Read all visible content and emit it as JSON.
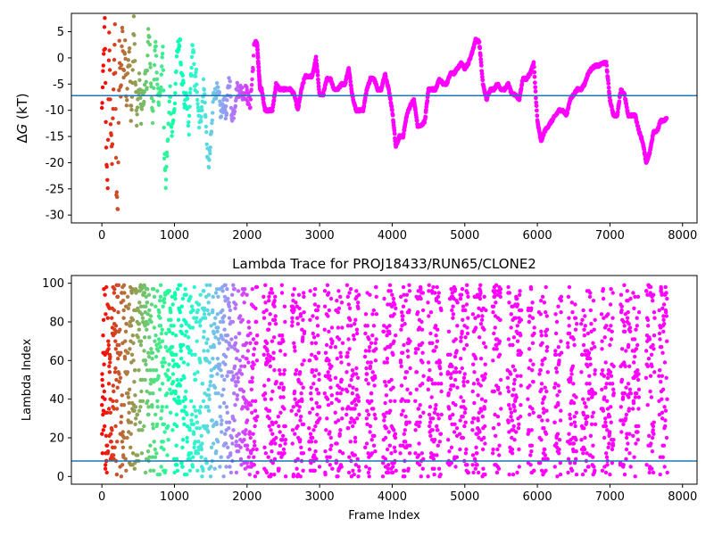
{
  "chart_data": [
    {
      "type": "scatter",
      "title": "",
      "xlabel": "",
      "ylabel": "ΔG (kT)",
      "ylabel_parts": [
        "Δ",
        "G",
        " (kT)"
      ],
      "xlim": [
        -420,
        8200
      ],
      "ylim": [
        -31.5,
        8.5
      ],
      "xticks": [
        0,
        1000,
        2000,
        3000,
        4000,
        5000,
        6000,
        7000,
        8000
      ],
      "yticks": [
        -30,
        -25,
        -20,
        -15,
        -10,
        -5,
        0,
        5
      ],
      "hline": -7.2,
      "hline_color": "#1f77b4",
      "colormap": "rainbow (reversed: frame 0 red → late frames violet)",
      "trace": [
        [
          0,
          -10
        ],
        [
          20,
          -2
        ],
        [
          40,
          7
        ],
        [
          60,
          -18
        ],
        [
          80,
          -24
        ],
        [
          100,
          6
        ],
        [
          120,
          -12
        ],
        [
          140,
          -20
        ],
        [
          160,
          -5
        ],
        [
          180,
          5
        ],
        [
          200,
          -26
        ],
        [
          220,
          -29
        ],
        [
          240,
          3
        ],
        [
          260,
          -8
        ],
        [
          280,
          6
        ],
        [
          300,
          -3
        ],
        [
          320,
          4
        ],
        [
          340,
          -10
        ],
        [
          360,
          -2
        ],
        [
          380,
          2
        ],
        [
          400,
          -12
        ],
        [
          420,
          -6
        ],
        [
          440,
          7.5
        ],
        [
          460,
          -4
        ],
        [
          480,
          -12
        ],
        [
          500,
          -8
        ],
        [
          520,
          -3
        ],
        [
          540,
          -12
        ],
        [
          560,
          -6
        ],
        [
          580,
          -9
        ],
        [
          600,
          -3
        ],
        [
          620,
          -5
        ],
        [
          640,
          5
        ],
        [
          660,
          2
        ],
        [
          680,
          -6
        ],
        [
          700,
          -12
        ],
        [
          720,
          -3
        ],
        [
          740,
          3
        ],
        [
          760,
          -4
        ],
        [
          780,
          -8
        ],
        [
          800,
          -6
        ],
        [
          820,
          -4
        ],
        [
          840,
          3
        ],
        [
          860,
          -18
        ],
        [
          880,
          -24
        ],
        [
          900,
          -18
        ],
        [
          920,
          -12
        ],
        [
          940,
          -6
        ],
        [
          960,
          -14
        ],
        [
          980,
          -12
        ],
        [
          1000,
          -10
        ],
        [
          1020,
          -3
        ],
        [
          1040,
          1
        ],
        [
          1060,
          3
        ],
        [
          1080,
          2
        ],
        [
          1100,
          -4
        ],
        [
          1120,
          -5
        ],
        [
          1140,
          -10
        ],
        [
          1160,
          -7
        ],
        [
          1180,
          -9
        ],
        [
          1200,
          -14
        ],
        [
          1220,
          -6
        ],
        [
          1240,
          1
        ],
        [
          1260,
          2
        ],
        [
          1280,
          -6
        ],
        [
          1300,
          -3
        ],
        [
          1320,
          -8
        ],
        [
          1340,
          -12
        ],
        [
          1360,
          -11
        ],
        [
          1380,
          -10
        ],
        [
          1400,
          -5
        ],
        [
          1420,
          -8
        ],
        [
          1440,
          -15
        ],
        [
          1460,
          -20
        ],
        [
          1480,
          -20
        ],
        [
          1500,
          -16
        ],
        [
          1520,
          -12
        ],
        [
          1540,
          -6
        ],
        [
          1560,
          -7
        ],
        [
          1580,
          -6
        ],
        [
          1600,
          -7
        ],
        [
          1620,
          -8
        ],
        [
          1640,
          -11
        ],
        [
          1660,
          -10
        ],
        [
          1680,
          -8
        ],
        [
          1700,
          -10
        ],
        [
          1720,
          -11
        ],
        [
          1740,
          -5
        ],
        [
          1760,
          -4
        ],
        [
          1780,
          -10
        ],
        [
          1800,
          -11
        ],
        [
          1820,
          -10
        ],
        [
          1840,
          -8
        ],
        [
          1860,
          -6
        ],
        [
          1880,
          -6
        ],
        [
          1900,
          -6
        ],
        [
          1920,
          -6.5
        ],
        [
          1940,
          -6.5
        ],
        [
          1960,
          -6.5
        ],
        [
          1980,
          -6.5
        ],
        [
          2000,
          -7
        ],
        [
          2020,
          -8
        ],
        [
          2040,
          -9
        ],
        [
          2060,
          -6
        ],
        [
          2080,
          -2
        ],
        [
          2100,
          2.5
        ],
        [
          2120,
          3
        ],
        [
          2140,
          2.5
        ],
        [
          2160,
          -2
        ],
        [
          2180,
          -6
        ],
        [
          2200,
          -6
        ],
        [
          2250,
          -10
        ],
        [
          2300,
          -10
        ],
        [
          2350,
          -10
        ],
        [
          2400,
          -5
        ],
        [
          2450,
          -6
        ],
        [
          2500,
          -6
        ],
        [
          2550,
          -6
        ],
        [
          2600,
          -6
        ],
        [
          2650,
          -7
        ],
        [
          2700,
          -10
        ],
        [
          2750,
          -6
        ],
        [
          2800,
          -3.5
        ],
        [
          2850,
          -3.5
        ],
        [
          2900,
          -3.5
        ],
        [
          2950,
          0
        ],
        [
          3000,
          -7
        ],
        [
          3050,
          -7
        ],
        [
          3100,
          -4
        ],
        [
          3150,
          -4
        ],
        [
          3200,
          -6
        ],
        [
          3250,
          -6
        ],
        [
          3300,
          -5
        ],
        [
          3350,
          -5
        ],
        [
          3400,
          -2
        ],
        [
          3450,
          -7
        ],
        [
          3500,
          -10
        ],
        [
          3550,
          -10
        ],
        [
          3600,
          -10
        ],
        [
          3650,
          -6
        ],
        [
          3700,
          -4
        ],
        [
          3750,
          -4
        ],
        [
          3800,
          -6
        ],
        [
          3850,
          -6
        ],
        [
          3900,
          -3
        ],
        [
          3950,
          -6
        ],
        [
          4000,
          -10
        ],
        [
          4050,
          -17
        ],
        [
          4100,
          -15
        ],
        [
          4150,
          -15
        ],
        [
          4200,
          -11
        ],
        [
          4250,
          -9
        ],
        [
          4300,
          -8
        ],
        [
          4350,
          -13
        ],
        [
          4400,
          -13
        ],
        [
          4450,
          -12
        ],
        [
          4500,
          -6
        ],
        [
          4550,
          -6
        ],
        [
          4600,
          -6
        ],
        [
          4650,
          -4
        ],
        [
          4700,
          -5
        ],
        [
          4750,
          -5
        ],
        [
          4800,
          -3
        ],
        [
          4850,
          -3
        ],
        [
          4900,
          -2
        ],
        [
          4950,
          -1
        ],
        [
          5000,
          -2
        ],
        [
          5050,
          -1
        ],
        [
          5100,
          1
        ],
        [
          5150,
          3.5
        ],
        [
          5200,
          3
        ],
        [
          5250,
          -5
        ],
        [
          5300,
          -8
        ],
        [
          5350,
          -6
        ],
        [
          5400,
          -6
        ],
        [
          5450,
          -5
        ],
        [
          5500,
          -6
        ],
        [
          5550,
          -6
        ],
        [
          5600,
          -5
        ],
        [
          5650,
          -7
        ],
        [
          5700,
          -7
        ],
        [
          5750,
          -8
        ],
        [
          5800,
          -4
        ],
        [
          5850,
          -4
        ],
        [
          5900,
          -3
        ],
        [
          5950,
          -1
        ],
        [
          6000,
          -12
        ],
        [
          6050,
          -16
        ],
        [
          6100,
          -14
        ],
        [
          6150,
          -13
        ],
        [
          6200,
          -12
        ],
        [
          6250,
          -11
        ],
        [
          6300,
          -10
        ],
        [
          6350,
          -10
        ],
        [
          6400,
          -11
        ],
        [
          6450,
          -8
        ],
        [
          6500,
          -7
        ],
        [
          6550,
          -6
        ],
        [
          6600,
          -6
        ],
        [
          6650,
          -5
        ],
        [
          6700,
          -3
        ],
        [
          6750,
          -2
        ],
        [
          6800,
          -1.5
        ],
        [
          6850,
          -1.5
        ],
        [
          6900,
          -1
        ],
        [
          6950,
          -1
        ],
        [
          7000,
          -8
        ],
        [
          7050,
          -11
        ],
        [
          7100,
          -11
        ],
        [
          7150,
          -6
        ],
        [
          7200,
          -7
        ],
        [
          7250,
          -11
        ],
        [
          7300,
          -11
        ],
        [
          7350,
          -11
        ],
        [
          7400,
          -14
        ],
        [
          7450,
          -16
        ],
        [
          7500,
          -20
        ],
        [
          7550,
          -18
        ],
        [
          7600,
          -14
        ],
        [
          7650,
          -14
        ],
        [
          7700,
          -12
        ],
        [
          7750,
          -12
        ],
        [
          7780,
          -11.5
        ]
      ]
    },
    {
      "type": "scatter",
      "title": "Lambda Trace for PROJ18433/RUN65/CLONE2",
      "xlabel": "Frame Index",
      "ylabel": "Lambda Index",
      "xlim": [
        -420,
        8200
      ],
      "ylim": [
        -4,
        104
      ],
      "xticks": [
        0,
        1000,
        2000,
        3000,
        4000,
        5000,
        6000,
        7000,
        8000
      ],
      "yticks": [
        0,
        20,
        40,
        60,
        80,
        100
      ],
      "hline": 8,
      "hline_color": "#1f77b4",
      "colormap": "rainbow (reversed: frame 0 red → late frames violet)",
      "frame_max": 7790,
      "lambda_range": [
        0,
        99
      ],
      "stripes": [
        {
          "x_start": 0,
          "x_end": 2000,
          "pattern": "dense scatter across 0–99"
        },
        {
          "x_start": 2000,
          "x_end": 7790,
          "pattern": "vertical bands with gaps, spanning 0–99"
        }
      ]
    }
  ]
}
